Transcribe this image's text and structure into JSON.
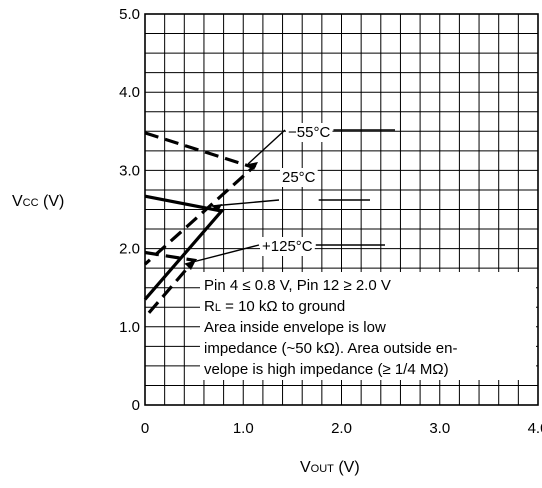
{
  "chart_data": {
    "type": "line",
    "xlabel": {
      "main": "V",
      "sub": "OUT",
      "unit": " (V)"
    },
    "ylabel": {
      "main": "V",
      "sub": "CC",
      "unit": " (V)"
    },
    "xlim": [
      0,
      4
    ],
    "ylim": [
      0,
      5
    ],
    "grid": true,
    "x_ticks": [
      "0",
      "1.0",
      "2.0",
      "3.0",
      "4.0"
    ],
    "y_ticks": [
      "0",
      "1.0",
      "2.0",
      "3.0",
      "4.0",
      "5.0"
    ],
    "series": [
      {
        "name": "−55°C",
        "upper": [
          [
            0,
            3.48
          ],
          [
            1.1,
            3.04
          ]
        ],
        "lower": [
          [
            0,
            1.8
          ],
          [
            1.1,
            3.04
          ]
        ],
        "style": "dashed"
      },
      {
        "name": "25°C",
        "upper": [
          [
            0,
            2.67
          ],
          [
            0.78,
            2.48
          ]
        ],
        "lower": [
          [
            0,
            1.35
          ],
          [
            0.78,
            2.48
          ]
        ],
        "style": "solid"
      },
      {
        "name": "+125°C",
        "upper": [
          [
            0,
            1.95
          ],
          [
            0.5,
            1.85
          ]
        ],
        "lower": [
          [
            0,
            1.12
          ],
          [
            0.5,
            1.85
          ]
        ],
        "style": "dashed"
      }
    ],
    "annotations": [
      "Pin 4 ≤ 0.8 V, Pin 12 ≥ 2.0 V",
      {
        "main": "R",
        "sub": "L",
        "rest": " = 10 kΩ to ground"
      },
      "Area inside envelope is low",
      "impedance (~50 kΩ). Area outside en-",
      "velope is high impedance (≥ 1/4 MΩ)"
    ]
  }
}
